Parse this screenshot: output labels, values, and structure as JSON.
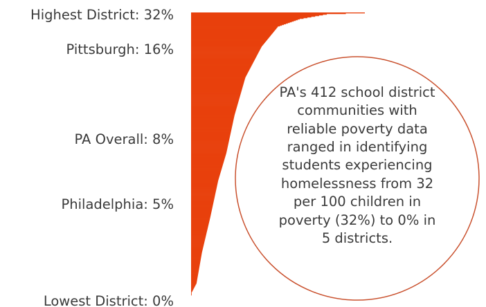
{
  "chart_data": {
    "type": "bar",
    "orientation": "horizontal",
    "description_kind": "ranked distribution of 412 school districts, sorted descending",
    "accent_color": "#e8410d",
    "circle_color": "#c9502d",
    "text_color": "#3a3a3a",
    "value_unit": "%",
    "xlim": [
      0,
      32
    ],
    "district_count": 412,
    "rank_profile": [
      {
        "rank": 1,
        "value": 32
      },
      {
        "rank": 3,
        "value": 25
      },
      {
        "rank": 10,
        "value": 20
      },
      {
        "rank": 21,
        "value": 16
      },
      {
        "rank": 50,
        "value": 13
      },
      {
        "rank": 95,
        "value": 10
      },
      {
        "rank": 150,
        "value": 8
      },
      {
        "rank": 205,
        "value": 6.5
      },
      {
        "rank": 245,
        "value": 5
      },
      {
        "rank": 300,
        "value": 3.5
      },
      {
        "rank": 350,
        "value": 2
      },
      {
        "rank": 395,
        "value": 1
      },
      {
        "rank": 407,
        "value": 0.2
      },
      {
        "rank": 408,
        "value": 0
      },
      {
        "rank": 412,
        "value": 0
      }
    ],
    "annotations": [
      {
        "label": "Highest District: 32%",
        "value": 32
      },
      {
        "label": "Pittsburgh: 16%",
        "value": 16
      },
      {
        "label": "PA Overall: 8%",
        "value": 8
      },
      {
        "label": "Philadelphia: 5%",
        "value": 5
      },
      {
        "label": "Lowest District: 0%",
        "value": 0
      }
    ],
    "callout": [
      "PA's 412 school district",
      "communities with",
      "reliable poverty data",
      "ranged in identifying",
      "students experiencing",
      "homelessness from 32",
      "per 100 children in",
      "poverty (32%) to 0% in",
      "5 districts."
    ]
  }
}
